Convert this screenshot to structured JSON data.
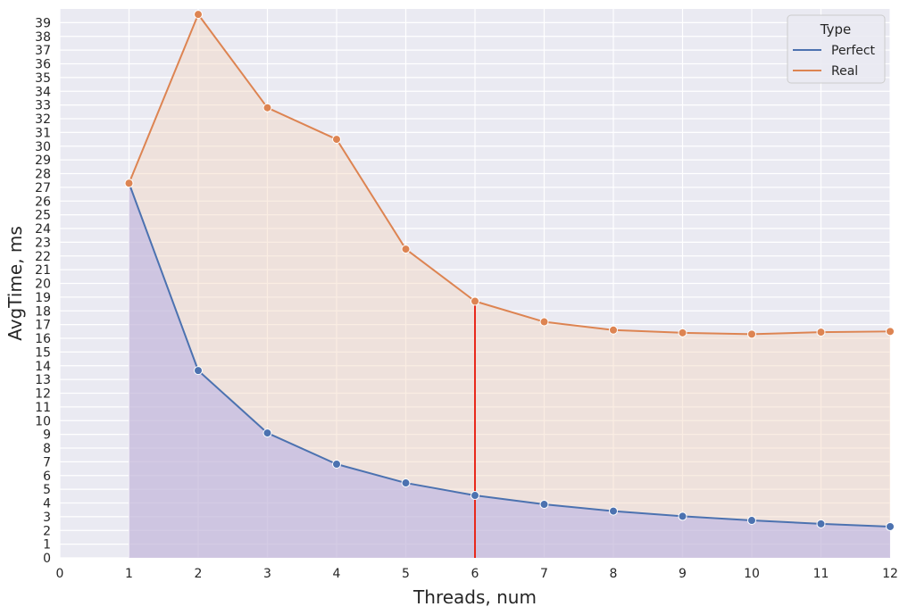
{
  "chart_data": {
    "type": "line",
    "title": "",
    "xlabel": "Threads, num",
    "ylabel": "AvgTime, ms",
    "xlim": [
      0,
      12
    ],
    "ylim": [
      0,
      40
    ],
    "x_ticks": [
      "0",
      "1",
      "2",
      "3",
      "4",
      "5",
      "6",
      "7",
      "8",
      "9",
      "10",
      "11",
      "12"
    ],
    "y_ticks": [
      "0",
      "1",
      "2",
      "3",
      "4",
      "5",
      "6",
      "7",
      "8",
      "9",
      "10",
      "11",
      "12",
      "13",
      "14",
      "15",
      "16",
      "17",
      "18",
      "19",
      "20",
      "21",
      "22",
      "23",
      "24",
      "25",
      "26",
      "27",
      "28",
      "29",
      "30",
      "31",
      "32",
      "33",
      "34",
      "35",
      "36",
      "37",
      "38",
      "39"
    ],
    "grid": true,
    "legend": {
      "title": "Type",
      "placement": "top-right"
    },
    "x": [
      1,
      2,
      3,
      4,
      5,
      6,
      7,
      8,
      9,
      10,
      11,
      12
    ],
    "series": [
      {
        "name": "Perfect",
        "color": "#4c72b0",
        "fill_color": "#b4aee6",
        "values": [
          27.3,
          13.65,
          9.1,
          6.83,
          5.46,
          4.55,
          3.9,
          3.41,
          3.03,
          2.73,
          2.48,
          2.28
        ]
      },
      {
        "name": "Real",
        "color": "#dd8452",
        "fill_color": "#f4d8c2",
        "values": [
          27.3,
          39.6,
          32.8,
          30.5,
          22.5,
          18.7,
          17.2,
          16.6,
          16.4,
          16.3,
          16.45,
          16.5
        ]
      }
    ],
    "vertical_marker": {
      "x": 6,
      "color": "#e8291c"
    },
    "colors": {
      "plot_background": "#eaeaf2",
      "grid": "#ffffff",
      "text": "#262626"
    }
  }
}
